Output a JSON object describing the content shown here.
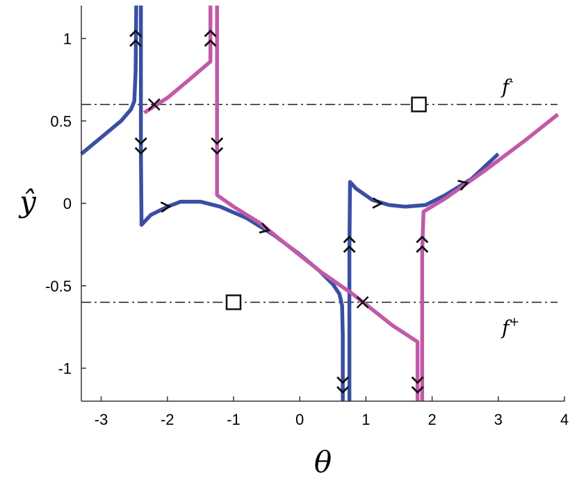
{
  "chart_data": {
    "type": "line",
    "title": "",
    "xlabel": "θ",
    "ylabel": "ŷ",
    "xlim": [
      -3.3,
      4.0
    ],
    "ylim": [
      -1.2,
      1.2
    ],
    "xticks": [
      -3,
      -2,
      -1,
      0,
      1,
      2,
      3,
      4
    ],
    "yticks": [
      -1,
      -0.5,
      0,
      0.5,
      1
    ],
    "xtick_labels": [
      "-3",
      "-2",
      "-1",
      "0",
      "1",
      "2",
      "3",
      "4"
    ],
    "ytick_labels": [
      "-1",
      "-0.5",
      "0",
      "0.5",
      "1"
    ],
    "grid": false,
    "colors": {
      "blue": "#3a4fa3",
      "magenta": "#c25aa8",
      "reference": "#1a1a1a"
    },
    "reference_lines": [
      {
        "label_main": "f",
        "label_sup": "-",
        "y": 0.6
      },
      {
        "label_main": "f",
        "label_sup": "+",
        "y": -0.6
      }
    ],
    "series": [
      {
        "color": "blue",
        "points": [
          [
            -3.3,
            0.3
          ],
          [
            -3.0,
            0.4
          ],
          [
            -2.7,
            0.5
          ],
          [
            -2.55,
            0.57
          ],
          [
            -2.5,
            0.62
          ],
          [
            -2.48,
            0.8
          ],
          [
            -2.47,
            1.2
          ]
        ]
      },
      {
        "color": "blue",
        "points": [
          [
            -2.4,
            1.2
          ],
          [
            -2.4,
            0.3
          ],
          [
            -2.39,
            -0.13
          ],
          [
            -2.25,
            -0.07
          ],
          [
            -2.0,
            -0.02
          ],
          [
            -1.8,
            0.01
          ],
          [
            -1.5,
            0.01
          ],
          [
            -1.2,
            -0.02
          ],
          [
            -0.8,
            -0.09
          ],
          [
            -0.4,
            -0.19
          ],
          [
            0.0,
            -0.31
          ],
          [
            0.3,
            -0.41
          ],
          [
            0.5,
            -0.49
          ],
          [
            0.6,
            -0.55
          ],
          [
            0.64,
            -0.62
          ],
          [
            0.65,
            -0.8
          ],
          [
            0.65,
            -1.2
          ]
        ]
      },
      {
        "color": "blue",
        "points": [
          [
            0.75,
            -1.2
          ],
          [
            0.75,
            -0.3
          ],
          [
            0.76,
            0.13
          ],
          [
            0.85,
            0.09
          ],
          [
            1.1,
            0.02
          ],
          [
            1.35,
            -0.01
          ],
          [
            1.6,
            -0.02
          ],
          [
            1.9,
            -0.01
          ],
          [
            2.2,
            0.05
          ],
          [
            2.6,
            0.15
          ],
          [
            3.0,
            0.3
          ]
        ]
      },
      {
        "color": "magenta",
        "points": [
          [
            -2.35,
            0.55
          ],
          [
            -2.0,
            0.64
          ],
          [
            -1.7,
            0.74
          ],
          [
            -1.35,
            0.86
          ],
          [
            -1.35,
            1.2
          ]
        ]
      },
      {
        "color": "magenta",
        "points": [
          [
            -1.25,
            1.2
          ],
          [
            -1.25,
            0.4
          ],
          [
            -1.25,
            0.05
          ],
          [
            -1.0,
            -0.02
          ],
          [
            -0.6,
            -0.12
          ],
          [
            -0.2,
            -0.25
          ],
          [
            0.3,
            -0.41
          ],
          [
            0.8,
            -0.55
          ],
          [
            1.4,
            -0.74
          ],
          [
            1.78,
            -0.84
          ],
          [
            1.78,
            -1.2
          ]
        ]
      },
      {
        "color": "magenta",
        "points": [
          [
            1.85,
            -1.2
          ],
          [
            1.85,
            -0.3
          ],
          [
            1.87,
            -0.05
          ],
          [
            2.2,
            0.03
          ],
          [
            2.8,
            0.2
          ],
          [
            3.4,
            0.38
          ],
          [
            3.9,
            0.54
          ]
        ]
      }
    ],
    "saddle_markers": [
      {
        "x": -2.2,
        "y": 0.6
      },
      {
        "x": 0.95,
        "y": -0.6
      }
    ],
    "square_markers": [
      {
        "x": 1.8,
        "y": 0.6
      },
      {
        "x": -1.0,
        "y": -0.6
      }
    ],
    "double_arrows": [
      {
        "x": -2.48,
        "y": 1.0,
        "dir": "up"
      },
      {
        "x": -1.35,
        "y": 1.0,
        "dir": "up"
      },
      {
        "x": -2.4,
        "y": 0.35,
        "dir": "down"
      },
      {
        "x": -1.25,
        "y": 0.35,
        "dir": "down"
      },
      {
        "x": 0.75,
        "y": -0.25,
        "dir": "up"
      },
      {
        "x": 1.85,
        "y": -0.25,
        "dir": "up"
      },
      {
        "x": 0.65,
        "y": -1.1,
        "dir": "down"
      },
      {
        "x": 1.78,
        "y": -1.1,
        "dir": "down"
      }
    ],
    "single_arrows": [
      {
        "x": -2.0,
        "y": -0.02,
        "dx": 1,
        "dy": 0.07
      },
      {
        "x": -0.5,
        "y": -0.16,
        "dx": 1,
        "dy": -0.3
      },
      {
        "x": 1.2,
        "y": 0.0,
        "dx": 1,
        "dy": -0.05
      },
      {
        "x": 2.5,
        "y": 0.12,
        "dx": 1,
        "dy": 0.3
      }
    ]
  }
}
